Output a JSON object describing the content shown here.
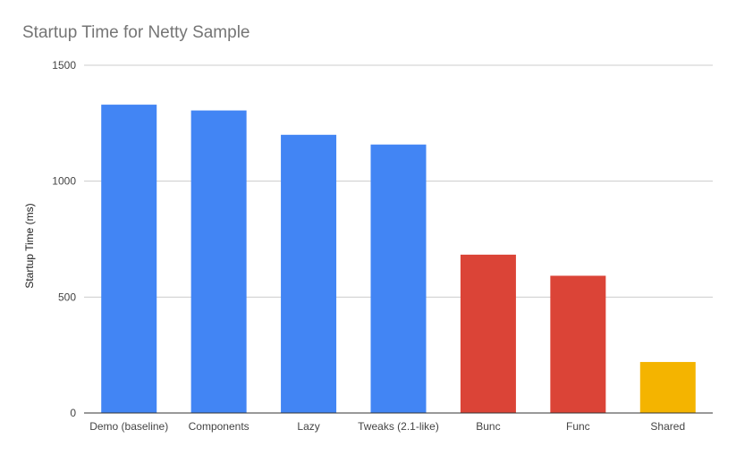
{
  "chart_data": {
    "type": "bar",
    "title": "Startup Time for Netty Sample",
    "xlabel": "",
    "ylabel": "Startup Time (ms)",
    "categories": [
      "Demo (baseline)",
      "Components",
      "Lazy",
      "Tweaks (2.1-like)",
      "Bunc",
      "Func",
      "Shared"
    ],
    "values": [
      1330,
      1305,
      1200,
      1158,
      683,
      592,
      220
    ],
    "colors": [
      "#4285f4",
      "#4285f4",
      "#4285f4",
      "#4285f4",
      "#db4437",
      "#db4437",
      "#f4b400"
    ],
    "ylim": [
      0,
      1500
    ],
    "yticks": [
      0,
      500,
      1000,
      1500
    ],
    "grid": true,
    "legend": "none"
  }
}
